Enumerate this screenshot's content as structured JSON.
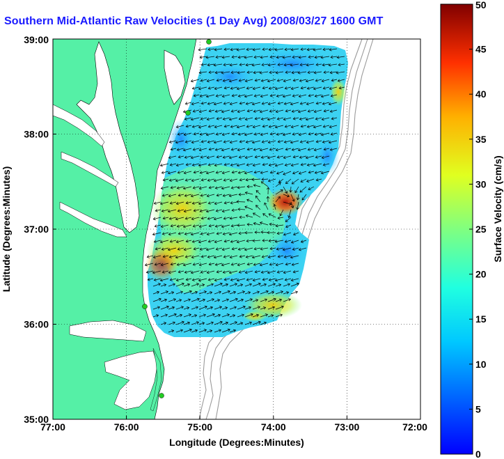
{
  "title": "Southern Mid-Atlantic Raw Velocities (1 Day Avg) 2008/03/27 1600 GMT",
  "map": {
    "x_ticks": [
      "77:00",
      "76:00",
      "75:00",
      "74:00",
      "73:00",
      "72:00"
    ],
    "y_ticks": [
      "35:00",
      "36:00",
      "37:00",
      "38:00",
      "39:00"
    ],
    "xlabel": "Longitude (Degrees:Minutes)",
    "ylabel": "Latitude (Degrees:Minutes)",
    "colors": {
      "land": "#55f0a6",
      "water": "#ffffff",
      "isobath": "#9a9a9a",
      "station": "#22cc22"
    }
  },
  "colorbar": {
    "label": "Surface Velocity (cm/s)",
    "ticks": [
      "0",
      "5",
      "10",
      "15",
      "20",
      "25",
      "30",
      "35",
      "40",
      "45",
      "50"
    ],
    "min": 0,
    "max": 50
  }
}
